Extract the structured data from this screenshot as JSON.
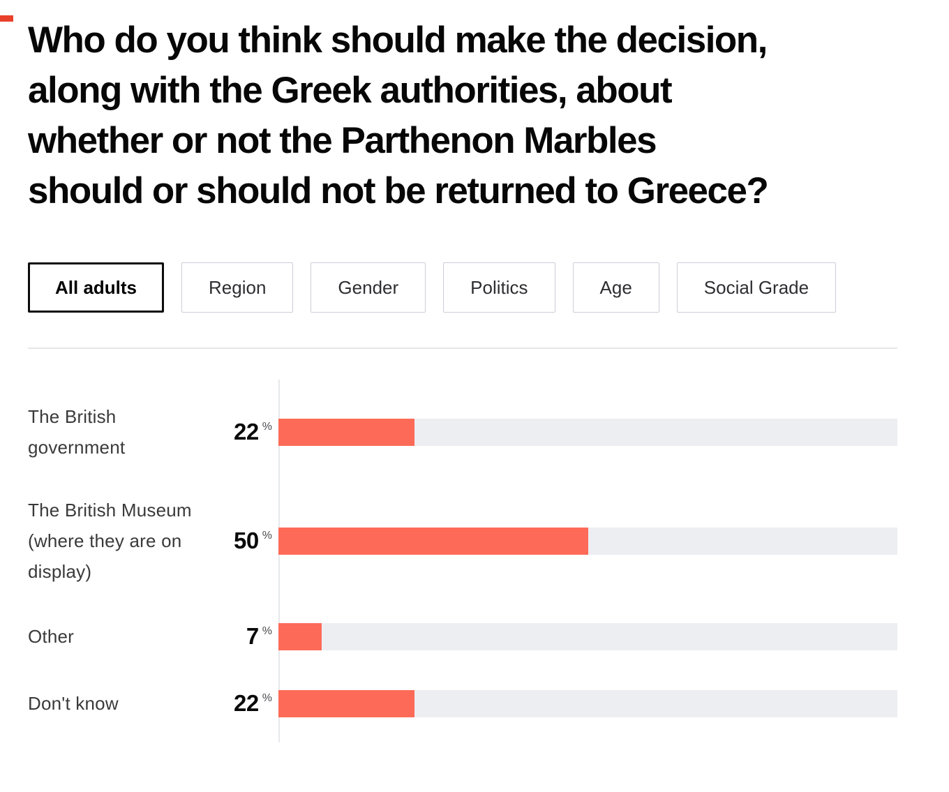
{
  "page": {
    "title": "Who do you think should make the decision, along with the Greek authorities, about whether or not the Parthenon Marbles should or should not be returned to Greece?",
    "title_lines": [
      "Who do you think should make the decision,",
      "along with the Greek authorities, about",
      "whether or not the Parthenon Marbles",
      "should or should not be returned to Greece?"
    ]
  },
  "filters": {
    "tabs": [
      {
        "label": "All adults",
        "active": true
      },
      {
        "label": "Region",
        "active": false
      },
      {
        "label": "Gender",
        "active": false
      },
      {
        "label": "Politics",
        "active": false
      },
      {
        "label": "Age",
        "active": false
      },
      {
        "label": "Social Grade",
        "active": false
      }
    ]
  },
  "chart_data": {
    "type": "bar",
    "orientation": "horizontal",
    "title": "Who do you think should make the decision, along with the Greek authorities, about whether or not the Parthenon Marbles should or should not be returned to Greece?",
    "categories": [
      "The British government",
      "The British Museum (where they are on display)",
      "Other",
      "Don't know"
    ],
    "values": [
      22,
      50,
      7,
      22
    ],
    "unit": "%",
    "xlim": [
      0,
      100
    ],
    "grid": false,
    "legend": "none",
    "bar_color": "#fd6b58",
    "track_color": "#eceef2",
    "selected_breakdown": "All adults"
  }
}
